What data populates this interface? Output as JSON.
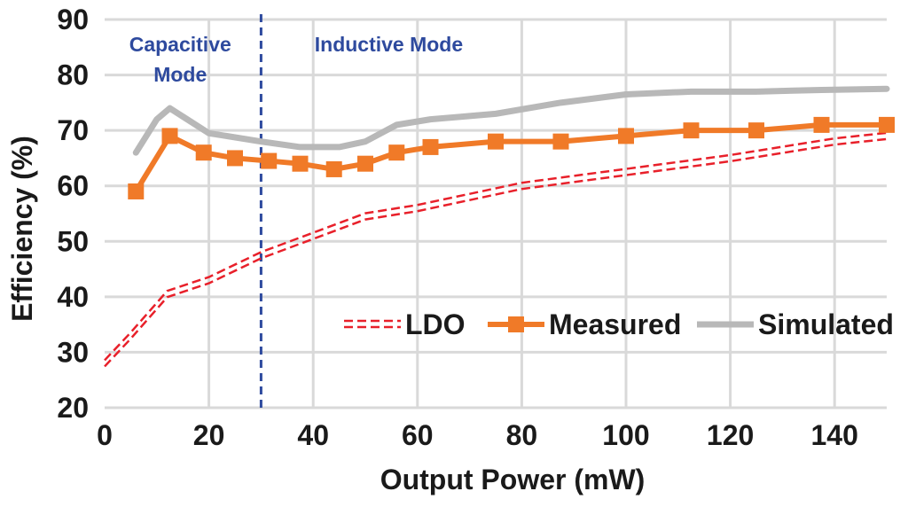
{
  "chart_data": {
    "type": "line",
    "title": "",
    "xlabel": "Output Power (mW)",
    "ylabel": "Efficiency (%)",
    "xlim": [
      0,
      150
    ],
    "ylim": [
      20,
      90
    ],
    "xticks": [
      0,
      20,
      40,
      60,
      80,
      100,
      120,
      140
    ],
    "yticks": [
      20,
      30,
      40,
      50,
      60,
      70,
      80,
      90
    ],
    "grid": true,
    "legend_position": "bottom-right",
    "colors": {
      "grid": "#d9d9d9",
      "divider": "#2e4a9e",
      "region_text": "#2e4a9e",
      "ldo": "#e8202a",
      "measured": "#f07a28",
      "simulated": "#b8b8b8"
    },
    "divider_x": 30,
    "regions": [
      {
        "label_lines": [
          "Capacitive",
          "Mode"
        ],
        "x_center": 14.5
      },
      {
        "label_lines": [
          "Inductive Mode"
        ],
        "x_center": 54.5
      }
    ],
    "series": [
      {
        "name": "LDO",
        "style": "dashed-double",
        "color": "#e8202a",
        "x": [
          0,
          5,
          12,
          20,
          30,
          40,
          50,
          60,
          80,
          100,
          120,
          140,
          150
        ],
        "y": [
          28,
          33,
          40.5,
          43,
          47.5,
          51,
          54.5,
          56,
          60,
          62.5,
          65,
          68,
          69
        ]
      },
      {
        "name": "Measured",
        "style": "solid-markers",
        "color": "#f07a28",
        "marker": "square",
        "x": [
          6,
          12.5,
          19,
          25,
          31.5,
          37.5,
          44,
          50,
          56,
          62.5,
          75,
          87.5,
          100,
          112.5,
          125,
          137.5,
          150
        ],
        "y": [
          59,
          69,
          66,
          65,
          64.5,
          64,
          63,
          64,
          66,
          67,
          68,
          68,
          69,
          70,
          70,
          71,
          71
        ]
      },
      {
        "name": "Simulated",
        "style": "solid",
        "color": "#b8b8b8",
        "x": [
          6,
          10,
          12.5,
          15,
          20,
          30,
          37.5,
          45,
          50,
          56,
          62.5,
          75,
          87.5,
          100,
          112.5,
          125,
          137.5,
          150
        ],
        "y": [
          66,
          72,
          74,
          72.5,
          69.5,
          68,
          67,
          67,
          68,
          71,
          72,
          73,
          75,
          76.5,
          77,
          77,
          77.3,
          77.5
        ]
      }
    ]
  }
}
